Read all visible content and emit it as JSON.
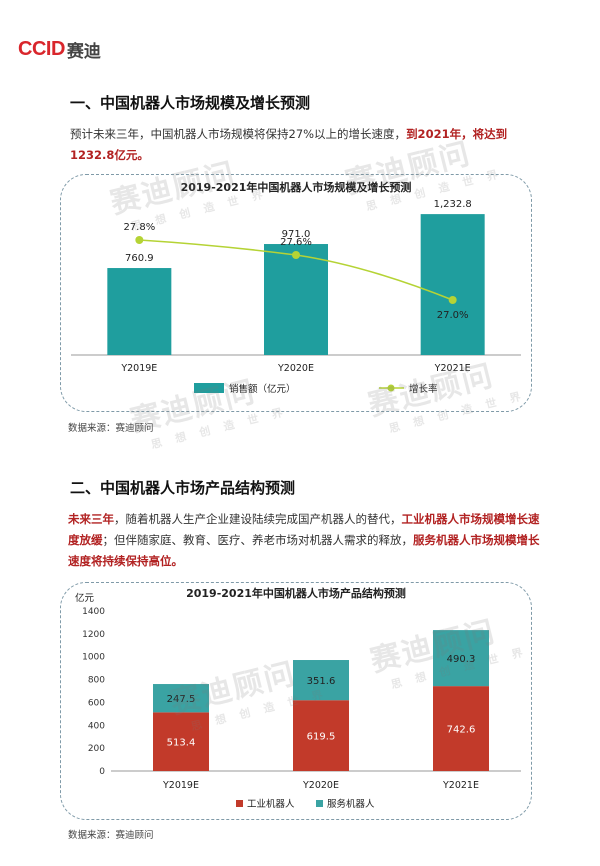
{
  "logo": {
    "brand": "CCID",
    "name": "赛迪"
  },
  "section1": {
    "title": "一、中国机器人市场规模及增长预测",
    "para_normal": "预计未来三年，中国机器人市场规模将保持27%以上的增长速度，",
    "para_red": "到2021年，将达到1232.8亿元。"
  },
  "chart1_source": "数据来源：赛迪顾问",
  "section2": {
    "title": "二、中国机器人市场产品结构预测",
    "para_red1": "未来三年",
    "para_normal1": "，随着机器人生产企业建设陆续完成国产机器人的替代，",
    "para_red2": "工业机器人市场规模增长速度放缓",
    "para_normal2": "；但伴随家庭、教育、医疗、养老市场对机器人需求的释放，",
    "para_red3": "服务机器人市场规模增长速度将持续保持高位。"
  },
  "chart2_source": "数据来源：赛迪顾问",
  "watermark": {
    "text": "赛迪顾问",
    "sub": "思 想 创 造 世 界"
  },
  "chart_data": [
    {
      "type": "bar",
      "title": "2019-2021年中国机器人市场规模及增长预测",
      "categories": [
        "Y2019E",
        "Y2020E",
        "Y2021E"
      ],
      "series": [
        {
          "name": "销售额（亿元）",
          "type": "bar",
          "values": [
            760.9,
            971.0,
            1232.8
          ],
          "labels": [
            "760.9",
            "971.0",
            "1,232.8"
          ],
          "color": "#1f9e9e"
        },
        {
          "name": "增长率",
          "type": "line",
          "values": [
            27.8,
            27.6,
            27.0
          ],
          "labels": [
            "27.8%",
            "27.6%",
            "27.0%"
          ],
          "color": "#b5d335"
        }
      ],
      "ylim": [
        0,
        1400
      ],
      "line_ylim": [
        26.8,
        28.0
      ],
      "legend": "bottom"
    },
    {
      "type": "bar",
      "stacked": true,
      "title": "2019-2021年中国机器人市场产品结构预测",
      "ylabel": "亿元",
      "categories": [
        "Y2019E",
        "Y2020E",
        "Y2021E"
      ],
      "series": [
        {
          "name": "工业机器人",
          "values": [
            513.4,
            619.5,
            742.6
          ],
          "color": "#c23a2a"
        },
        {
          "name": "服务机器人",
          "values": [
            247.5,
            351.6,
            490.3
          ],
          "color": "#3aa3a3"
        }
      ],
      "yticks": [
        "0",
        "200",
        "400",
        "600",
        "800",
        "1000",
        "1200",
        "1400"
      ],
      "ylim": [
        0,
        1400
      ],
      "legend": "bottom"
    }
  ]
}
